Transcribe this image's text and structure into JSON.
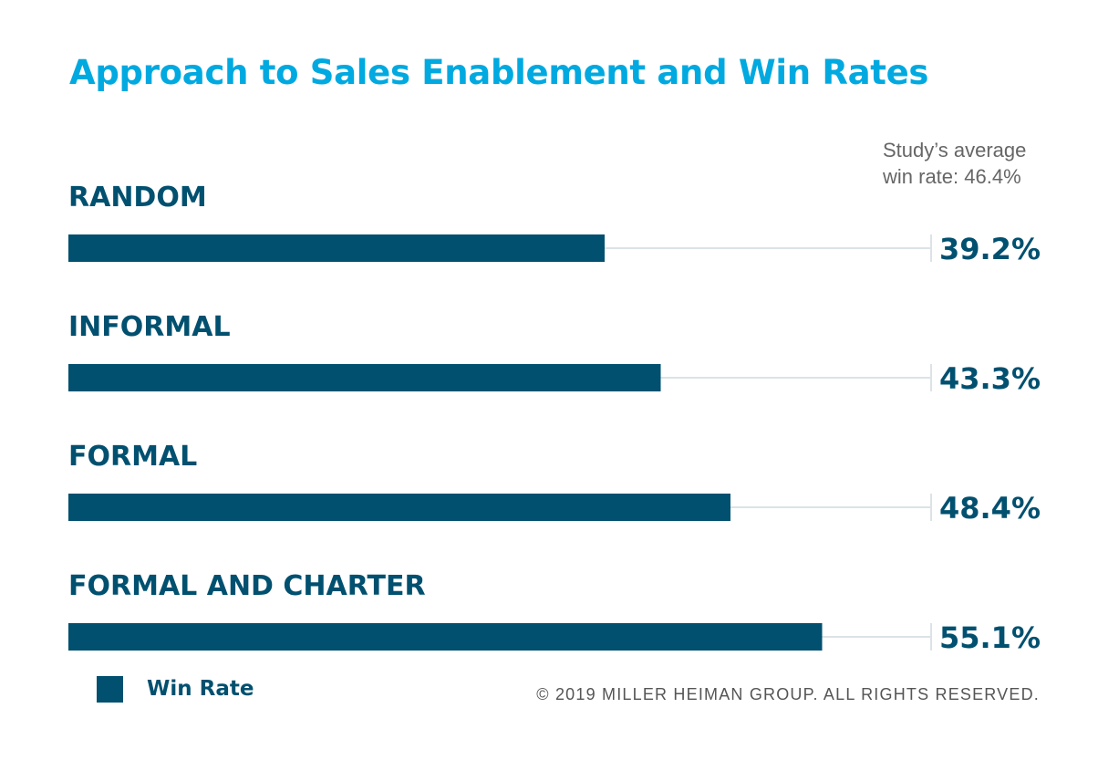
{
  "chart_data": {
    "type": "bar",
    "orientation": "horizontal",
    "title": "Approach to Sales Enablement and Win Rates",
    "categories": [
      "RANDOM",
      "INFORMAL",
      "FORMAL",
      "FORMAL AND CHARTER"
    ],
    "series": [
      {
        "name": "Win Rate",
        "values": [
          39.2,
          43.3,
          48.4,
          55.1
        ]
      }
    ],
    "value_labels": [
      "39.2%",
      "43.3%",
      "48.4%",
      "55.1%"
    ],
    "xlim": [
      0,
      63
    ],
    "annotation": {
      "line1": "Study’s average",
      "line2": "win rate: 46.4%"
    },
    "legend": {
      "position": "bottom-left",
      "label": "Win Rate"
    },
    "grid": false,
    "colors": {
      "bar": "#01506f",
      "track": "#dce3e6",
      "title": "#00a9e0",
      "text": "#01506f"
    }
  },
  "footer": {
    "copyright": "© 2019 MILLER HEIMAN GROUP. ALL RIGHTS RESERVED."
  }
}
